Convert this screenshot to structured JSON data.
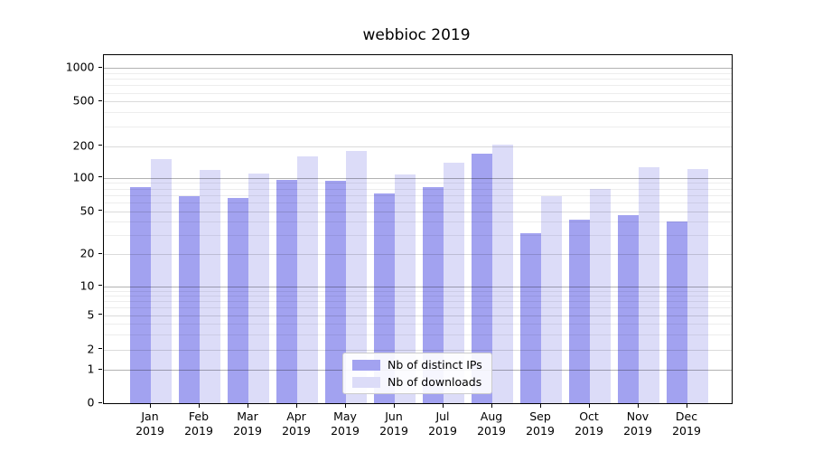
{
  "title": "webbioc 2019",
  "chart_data": {
    "type": "bar",
    "title": "webbioc 2019",
    "scale": "symlog",
    "grid": true,
    "legend_position": "lower center",
    "categories": [
      "Jan",
      "Feb",
      "Mar",
      "Apr",
      "May",
      "Jun",
      "Jul",
      "Aug",
      "Sep",
      "Oct",
      "Nov",
      "Dec"
    ],
    "year_label": "2019",
    "series": [
      {
        "name": "Nb of distinct IPs",
        "color": "#a2a2f0",
        "values": [
          82,
          69,
          66,
          96,
          94,
          72,
          82,
          170,
          31,
          42,
          46,
          40
        ]
      },
      {
        "name": "Nb of downloads",
        "color": "#dcdcf8",
        "values": [
          150,
          120,
          110,
          160,
          180,
          108,
          138,
          207,
          68,
          79,
          125,
          121
        ]
      }
    ],
    "y_ticks": [
      0,
      1,
      2,
      5,
      10,
      20,
      50,
      100,
      200,
      500,
      1000
    ],
    "y_tick_labels": [
      "0",
      "1",
      "2",
      "5",
      "10",
      "20",
      "50",
      "100",
      "200",
      "500",
      "1000"
    ],
    "ylim": [
      0,
      1300
    ],
    "xlabel": "",
    "ylabel": ""
  },
  "colors": {
    "ips_bar": "#a2a2f0",
    "downloads_bar": "#dcdcf8",
    "major_grid": "rgba(0,0,0,0.30)",
    "labeled_minor_grid": "rgba(0,0,0,0.14)",
    "minor_grid": "rgba(0,0,0,0.07)"
  }
}
